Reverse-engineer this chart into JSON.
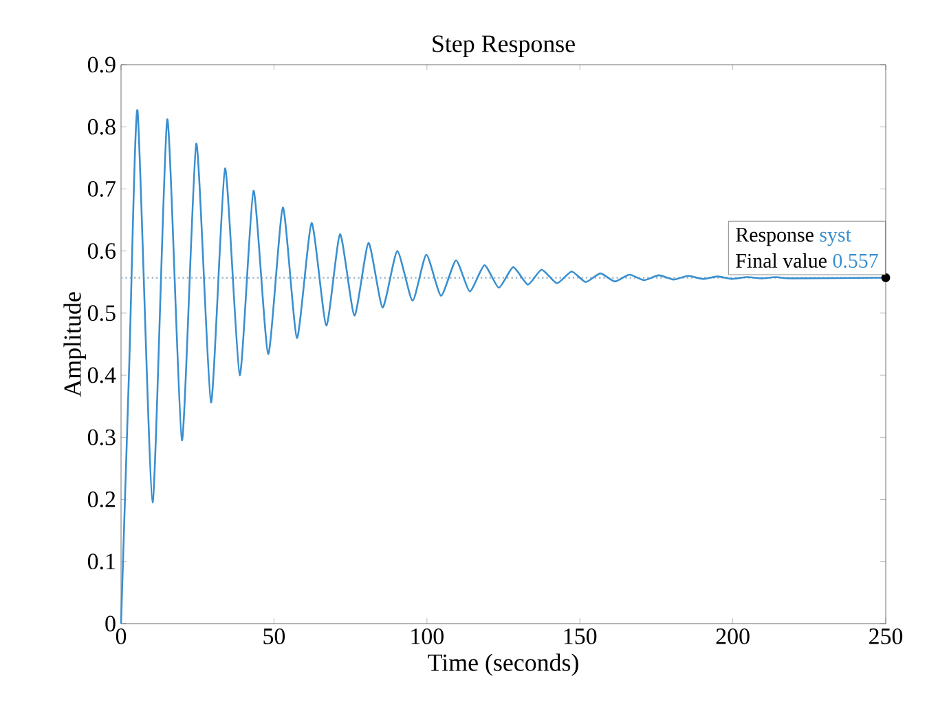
{
  "chart_data": {
    "type": "line",
    "title": "Step Response",
    "xlabel": "Time (seconds)",
    "ylabel": "Amplitude",
    "xlim": [
      0,
      250
    ],
    "ylim": [
      0,
      0.9
    ],
    "xticks": [
      0,
      50,
      100,
      150,
      200,
      250
    ],
    "yticks": [
      0,
      0.1,
      0.2,
      0.3,
      0.4,
      0.5,
      0.6,
      0.7,
      0.8,
      0.9
    ],
    "grid": false,
    "marker": "none",
    "line_style": "solid",
    "series": [
      {
        "name": "syst",
        "color": "#3a8fcf",
        "x": [
          0,
          2.7,
          5.4,
          10.3,
          15.1,
          19.9,
          24.6,
          29.4,
          34.0,
          38.8,
          43.3,
          48.1,
          52.9,
          57.5,
          62.3,
          67.1,
          71.6,
          76.3,
          80.9,
          85.5,
          90.3,
          95.3,
          99.8,
          104.6,
          109.5,
          114.0,
          118.8,
          123.5,
          128.2,
          133.0,
          137.5,
          142.5,
          147.3,
          151.9,
          156.7,
          161.4,
          166.2,
          171.0,
          175.8,
          180.6,
          185.4,
          190.2,
          195.0,
          199.8,
          204.6,
          209.4,
          214.2,
          219.0,
          250
        ],
        "values": [
          0,
          0.42,
          0.826,
          0.195,
          0.812,
          0.295,
          0.773,
          0.356,
          0.733,
          0.4,
          0.697,
          0.434,
          0.67,
          0.46,
          0.645,
          0.48,
          0.627,
          0.496,
          0.613,
          0.509,
          0.6,
          0.52,
          0.594,
          0.528,
          0.585,
          0.535,
          0.577,
          0.541,
          0.574,
          0.546,
          0.57,
          0.548,
          0.567,
          0.55,
          0.564,
          0.551,
          0.562,
          0.553,
          0.561,
          0.554,
          0.56,
          0.555,
          0.559,
          0.555,
          0.558,
          0.556,
          0.558,
          0.556,
          0.557
        ]
      }
    ],
    "ref_lines": [
      {
        "axis": "y",
        "value": 0.557,
        "label": "0.557",
        "color": "#9fb9cc",
        "line_style": "dotted"
      }
    ],
    "annotations": [
      "Response",
      "Final value"
    ]
  }
}
